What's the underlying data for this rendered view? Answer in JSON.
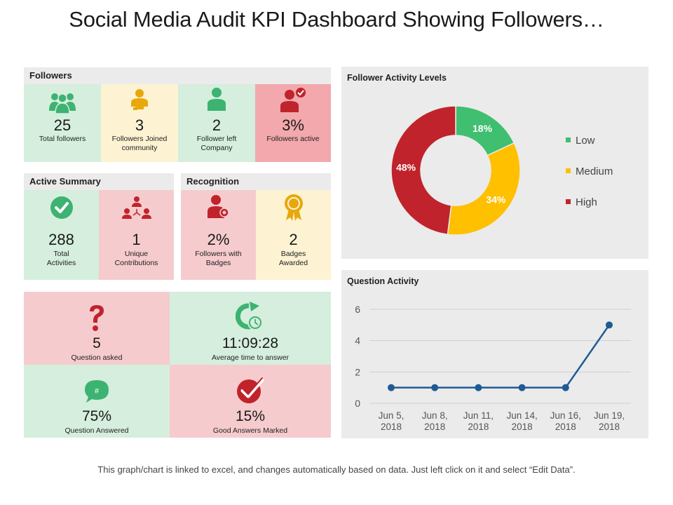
{
  "title": "Social Media Audit KPI Dashboard Showing Followers…",
  "footer": "This graph/chart is linked to excel,  and changes automatically based on data. Just left click on it and select “Edit Data”.",
  "followers": {
    "header": "Followers",
    "tiles": [
      {
        "value": "25",
        "label": "Total followers",
        "icon": "group-users-icon"
      },
      {
        "value": "3",
        "label": "Followers Joined community",
        "icon": "joined-user-icon"
      },
      {
        "value": "2",
        "label": "Follower left Company",
        "icon": "user-icon"
      },
      {
        "value": "3%",
        "label": "Followers active",
        "icon": "user-check-icon"
      }
    ]
  },
  "active_summary": {
    "header": "Active Summary",
    "tiles": [
      {
        "value": "288",
        "label": "Total Activities",
        "icon": "checkmark-circle-icon"
      },
      {
        "value": "1",
        "label": "Unique Contributions",
        "icon": "network-users-icon"
      }
    ]
  },
  "recognition": {
    "header": "Recognition",
    "tiles": [
      {
        "value": "2%",
        "label": "Followers with Badges",
        "icon": "user-badge-icon"
      },
      {
        "value": "2",
        "label": "Badges Awarded",
        "icon": "award-badge-icon"
      }
    ]
  },
  "questions": {
    "tiles": [
      {
        "value": "5",
        "label": "Question asked",
        "icon": "question-mark-icon"
      },
      {
        "value": "11:09:28",
        "label": "Average time to answer",
        "icon": "refresh-clock-icon"
      },
      {
        "value": "75%",
        "label": "Question Answered",
        "icon": "chat-bubble-icon",
        "glyph": "#"
      },
      {
        "value": "15%",
        "label": "Good Answers Marked",
        "icon": "check-badge-icon"
      }
    ]
  },
  "colors": {
    "green": "#3cb371",
    "yellow": "#f5b800",
    "red": "#c0232c",
    "blue": "#1f5a96",
    "gold": "#e8a80c"
  },
  "chart_data": [
    {
      "type": "pie",
      "title": "Follower Activity Levels",
      "categories": [
        "Low",
        "Medium",
        "High"
      ],
      "values": [
        18,
        34,
        48
      ],
      "value_labels": [
        "18%",
        "34%",
        "48%"
      ],
      "colors": [
        "#3fbf6f",
        "#ffc000",
        "#c0232c"
      ],
      "donut": true,
      "legend": "right"
    },
    {
      "type": "line",
      "title": "Question Activity",
      "categories": [
        "Jun 5, 2018",
        "Jun 8, 2018",
        "Jun 11, 2018",
        "Jun 14, 2018",
        "Jun 16, 2018",
        "Jun 19, 2018"
      ],
      "x_lines": [
        [
          "Jun 5,",
          "2018"
        ],
        [
          "Jun 8,",
          "2018"
        ],
        [
          "Jun 11,",
          "2018"
        ],
        [
          "Jun 14,",
          "2018"
        ],
        [
          "Jun 16,",
          "2018"
        ],
        [
          "Jun 19,",
          "2018"
        ]
      ],
      "values": [
        1,
        1,
        1,
        1,
        1,
        5
      ],
      "ylim": [
        0,
        6
      ],
      "yticks": [
        "0",
        "2",
        "4",
        "6"
      ],
      "grid": true,
      "color": "#1f5a96"
    }
  ]
}
